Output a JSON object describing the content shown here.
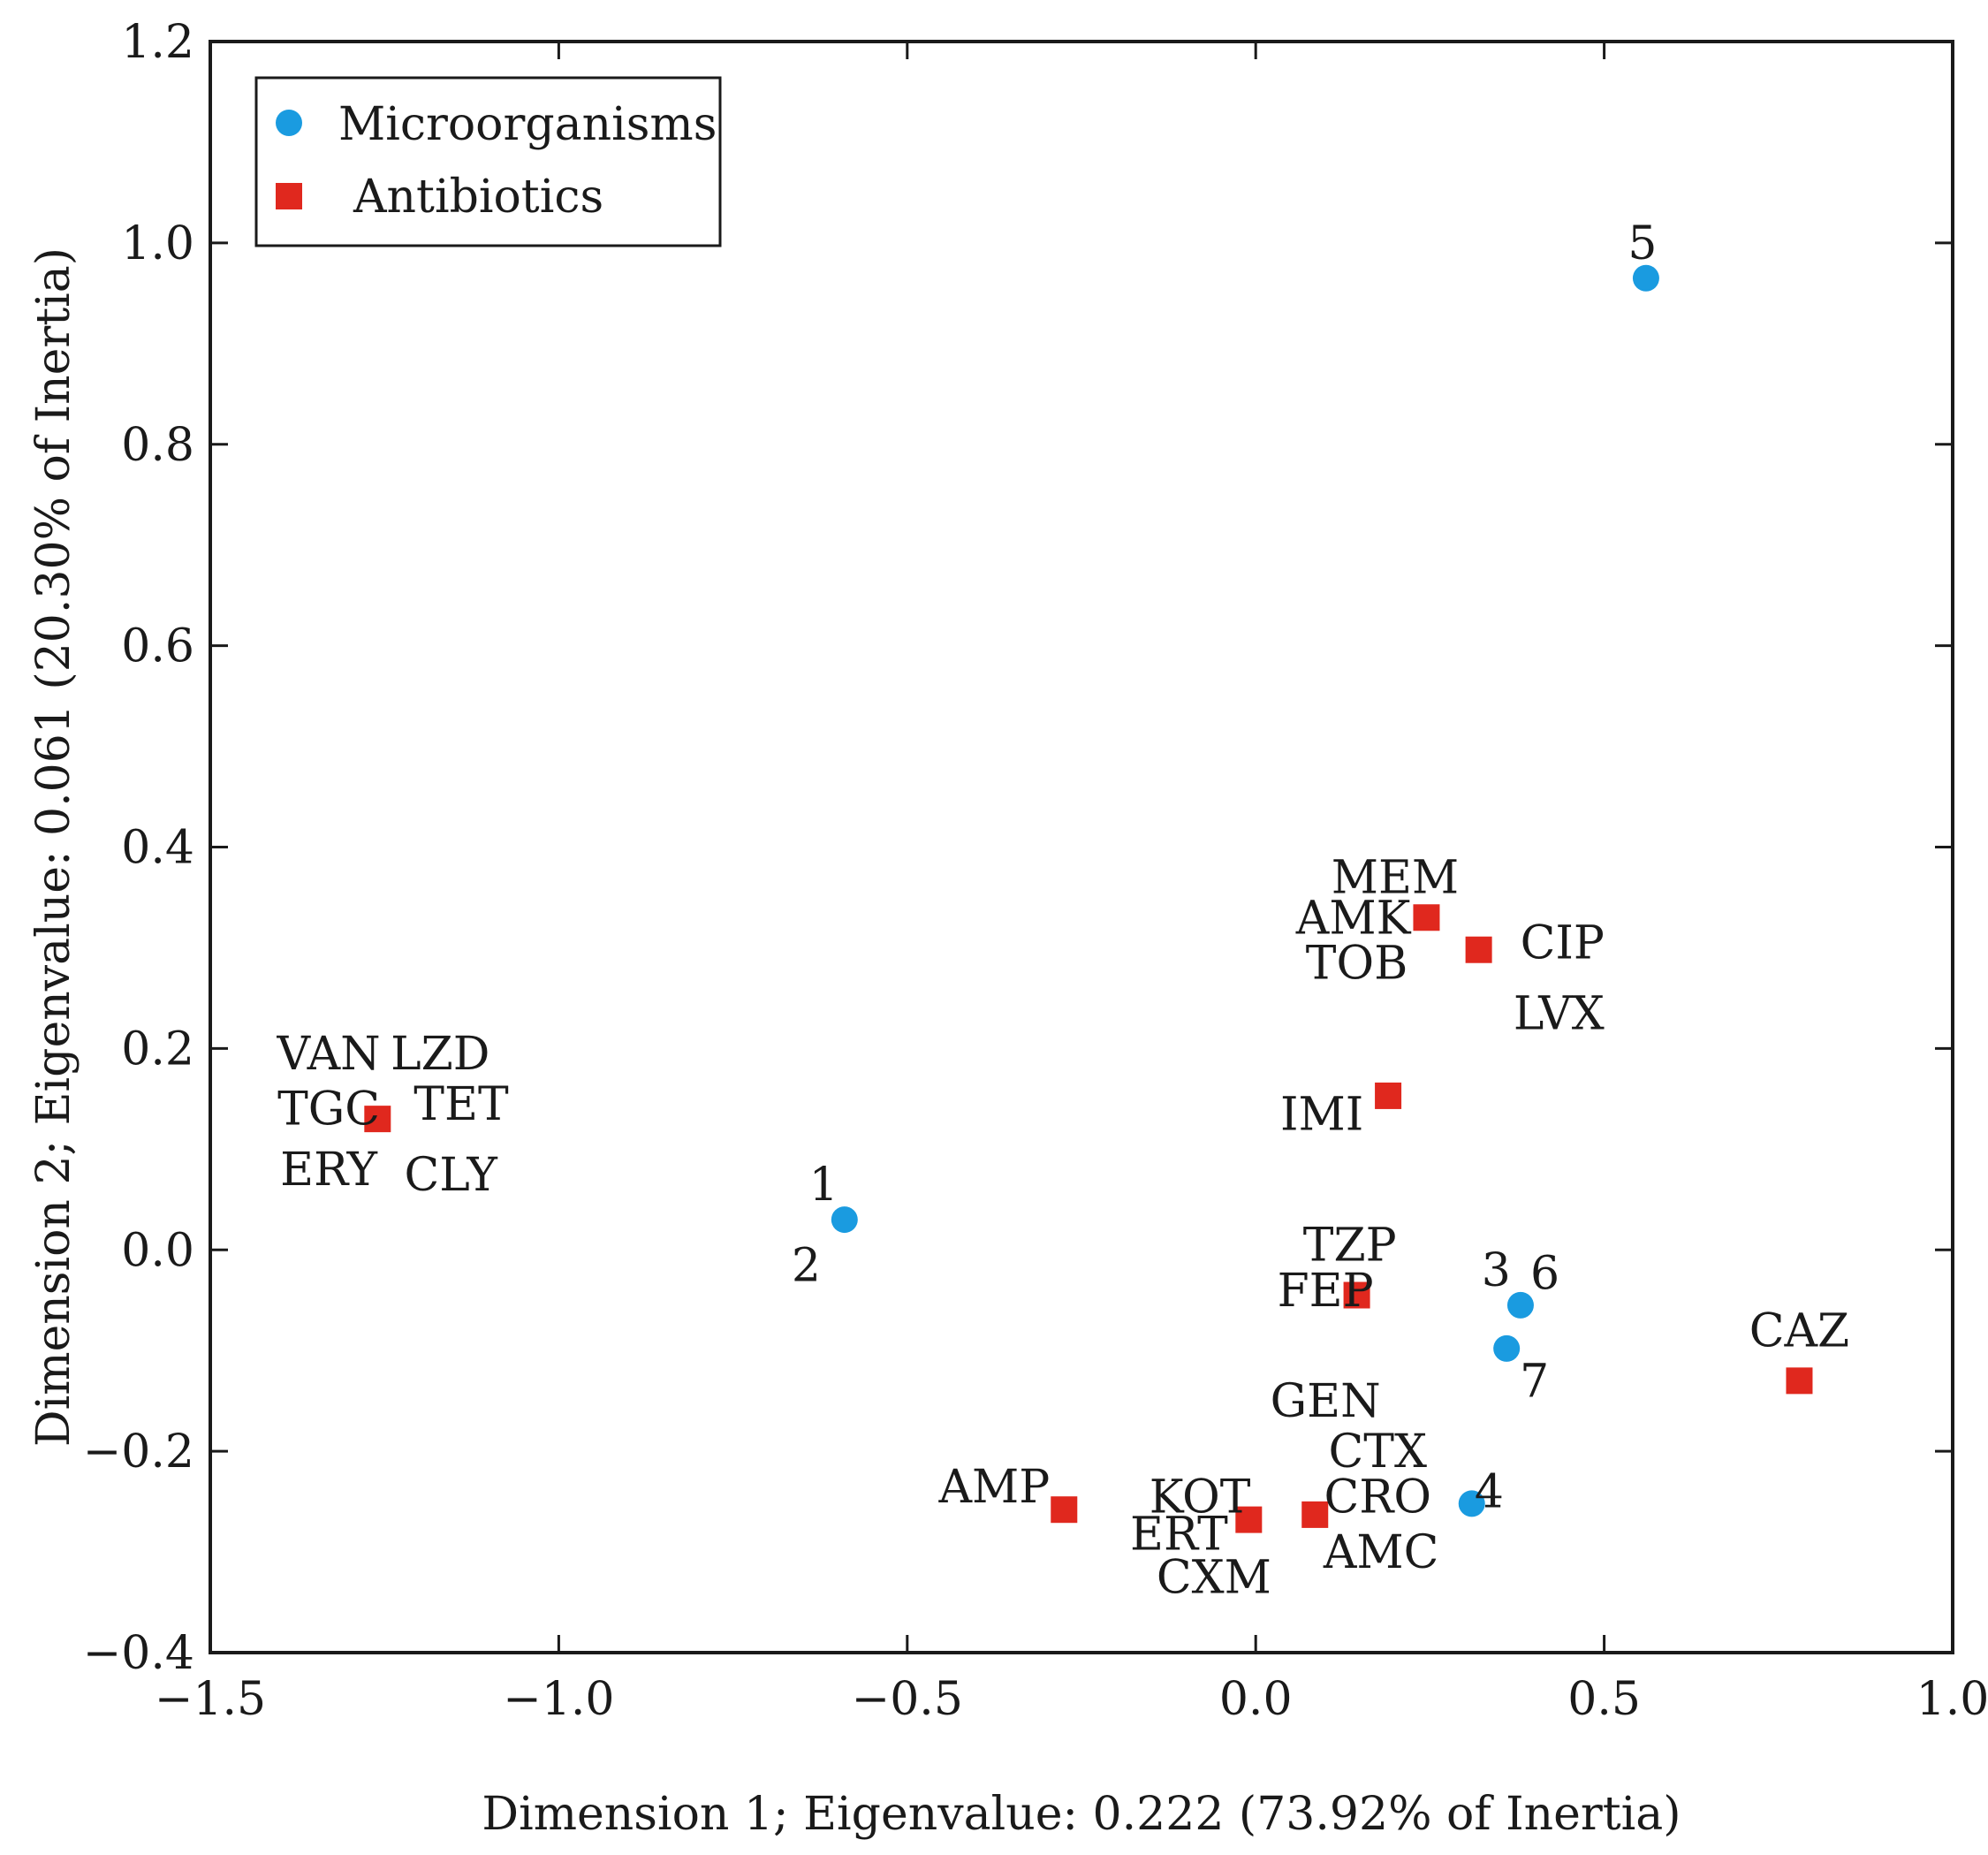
{
  "chart_data": {
    "type": "scatter",
    "title": "",
    "xlabel": "Dimension 1; Eigenvalue: 0.222 (73.92% of Inertia)",
    "ylabel": "Dimension 2; Eigenvalue: 0.061 (20.30% of Inertia)",
    "xlim": [
      -1.5,
      1.0
    ],
    "ylim": [
      -0.4,
      1.2
    ],
    "xticks": [
      "−1.5",
      "−1.0",
      "−0.5",
      "0.0",
      "0.5",
      "1.0"
    ],
    "yticks": [
      "−0.4",
      "−0.2",
      "0.0",
      "0.2",
      "0.4",
      "0.6",
      "0.8",
      "1.0",
      "1.2"
    ],
    "grid": false,
    "legend_position": "top-left",
    "colors": {
      "microorganisms": "#1a9be0",
      "antibiotics": "#e0281e"
    },
    "series": [
      {
        "name": "Microorganisms",
        "marker": "circle",
        "points": [
          {
            "x": -0.59,
            "y": 0.03
          },
          {
            "x": 0.56,
            "y": 0.965
          },
          {
            "x": 0.38,
            "y": -0.055
          },
          {
            "x": 0.36,
            "y": -0.098
          },
          {
            "x": 0.31,
            "y": -0.252
          }
        ]
      },
      {
        "name": "Antibiotics",
        "marker": "square",
        "points": [
          {
            "x": -1.26,
            "y": 0.13
          },
          {
            "x": 0.245,
            "y": 0.33
          },
          {
            "x": 0.32,
            "y": 0.298
          },
          {
            "x": 0.19,
            "y": 0.153
          },
          {
            "x": 0.145,
            "y": -0.045
          },
          {
            "x": 0.78,
            "y": -0.13
          },
          {
            "x": -0.275,
            "y": -0.258
          },
          {
            "x": -0.01,
            "y": -0.268
          },
          {
            "x": 0.085,
            "y": -0.263
          }
        ]
      }
    ],
    "annotations": [
      {
        "text": "1",
        "x": -0.62,
        "y": 0.065
      },
      {
        "text": "2",
        "x": -0.645,
        "y": -0.015
      },
      {
        "text": "5",
        "x": 0.555,
        "y": 1.0
      },
      {
        "text": "3",
        "x": 0.345,
        "y": -0.02
      },
      {
        "text": "6",
        "x": 0.415,
        "y": -0.023
      },
      {
        "text": "7",
        "x": 0.4,
        "y": -0.13
      },
      {
        "text": "4",
        "x": 0.335,
        "y": -0.24
      },
      {
        "text": "VAN",
        "x": -1.33,
        "y": 0.195
      },
      {
        "text": "LZD",
        "x": -1.17,
        "y": 0.195
      },
      {
        "text": "TGC",
        "x": -1.33,
        "y": 0.14
      },
      {
        "text": "TET",
        "x": -1.14,
        "y": 0.145
      },
      {
        "text": "ERY",
        "x": -1.33,
        "y": 0.08
      },
      {
        "text": "CLY",
        "x": -1.155,
        "y": 0.075
      },
      {
        "text": "MEM",
        "x": 0.2,
        "y": 0.37
      },
      {
        "text": "AMK",
        "x": 0.14,
        "y": 0.33
      },
      {
        "text": "TOB",
        "x": 0.145,
        "y": 0.285
      },
      {
        "text": "CIP",
        "x": 0.44,
        "y": 0.305
      },
      {
        "text": "LVX",
        "x": 0.435,
        "y": 0.235
      },
      {
        "text": "IMI",
        "x": 0.095,
        "y": 0.135
      },
      {
        "text": "TZP",
        "x": 0.135,
        "y": 0.005
      },
      {
        "text": "FEP",
        "x": 0.1,
        "y": -0.04
      },
      {
        "text": "CAZ",
        "x": 0.78,
        "y": -0.08
      },
      {
        "text": "GEN",
        "x": 0.1,
        "y": -0.15
      },
      {
        "text": "CTX",
        "x": 0.175,
        "y": -0.2
      },
      {
        "text": "CRO",
        "x": 0.175,
        "y": -0.245
      },
      {
        "text": "AMP",
        "x": -0.375,
        "y": -0.235
      },
      {
        "text": "KOT",
        "x": -0.08,
        "y": -0.245
      },
      {
        "text": "ERT",
        "x": -0.11,
        "y": -0.282
      },
      {
        "text": "CXM",
        "x": -0.06,
        "y": -0.325
      },
      {
        "text": "AMC",
        "x": 0.18,
        "y": -0.3
      }
    ]
  }
}
